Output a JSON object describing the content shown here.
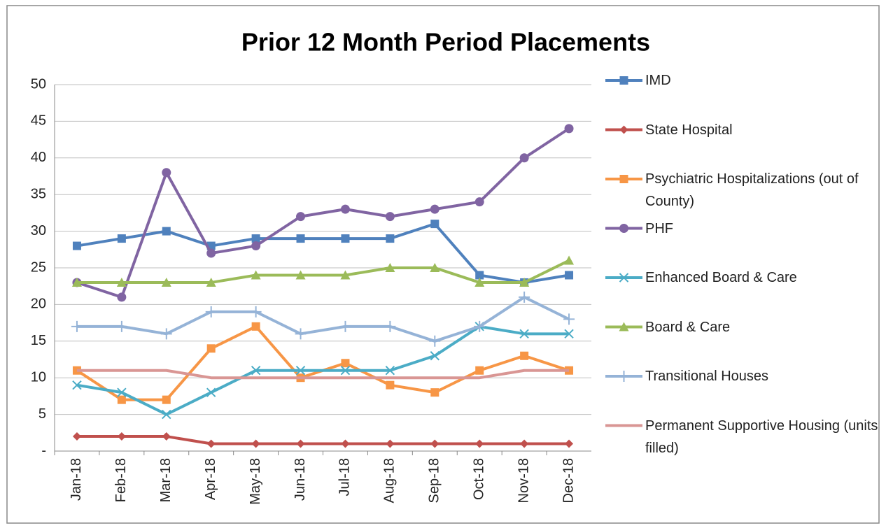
{
  "chart_data": {
    "type": "line",
    "title": "Prior 12 Month Period Placements",
    "categories": [
      "Jan-18",
      "Feb-18",
      "Mar-18",
      "Apr-18",
      "May-18",
      "Jun-18",
      "Jul-18",
      "Aug-18",
      "Sep-18",
      "Oct-18",
      "Nov-18",
      "Dec-18"
    ],
    "ylim": [
      0,
      50
    ],
    "yticks": [
      {
        "value": 0,
        "label": "-"
      },
      5,
      10,
      15,
      20,
      25,
      30,
      35,
      40,
      45,
      50
    ],
    "grid": true,
    "legend": "right",
    "series": [
      {
        "name": "IMD",
        "color": "#4f81bd",
        "marker": "square",
        "values": [
          28,
          29,
          30,
          28,
          29,
          29,
          29,
          29,
          31,
          24,
          23,
          24
        ]
      },
      {
        "name": "State Hospital",
        "color": "#c0504d",
        "marker": "diamond",
        "values": [
          2,
          2,
          2,
          1,
          1,
          1,
          1,
          1,
          1,
          1,
          1,
          1
        ]
      },
      {
        "name": "Psychiatric Hospitalizations (out of County)",
        "color": "#f79646",
        "marker": "square",
        "values": [
          11,
          7,
          7,
          14,
          17,
          10,
          12,
          9,
          8,
          11,
          13,
          11
        ]
      },
      {
        "name": "PHF",
        "color": "#8064a2",
        "marker": "circle",
        "values": [
          23,
          21,
          38,
          27,
          28,
          32,
          33,
          32,
          33,
          34,
          40,
          44
        ]
      },
      {
        "name": "Enhanced Board & Care",
        "color": "#4bacc6",
        "marker": "x",
        "values": [
          9,
          8,
          5,
          8,
          11,
          11,
          11,
          11,
          13,
          17,
          16,
          16
        ]
      },
      {
        "name": "Board & Care",
        "color": "#9bbb59",
        "marker": "triangle",
        "values": [
          23,
          23,
          23,
          23,
          24,
          24,
          24,
          25,
          25,
          23,
          23,
          26
        ]
      },
      {
        "name": "Transitional Houses",
        "color": "#95b3d7",
        "marker": "plus",
        "values": [
          17,
          17,
          16,
          19,
          19,
          16,
          17,
          17,
          15,
          17,
          21,
          18
        ]
      },
      {
        "name": "Permanent Supportive Housing (units filled)",
        "color": "#d99694",
        "marker": "none",
        "values": [
          11,
          11,
          11,
          10,
          10,
          10,
          10,
          10,
          10,
          10,
          11,
          11
        ]
      }
    ]
  }
}
